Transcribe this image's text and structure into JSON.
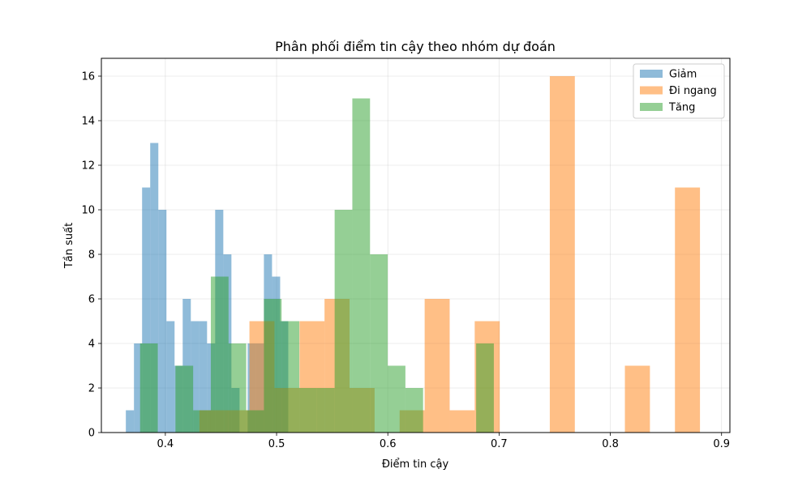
{
  "chart_data": {
    "type": "bar",
    "subtype": "overlapping-histogram",
    "title": "Phân phối điểm tin cậy theo nhóm dự đoán",
    "xlabel": "Điểm tin cậy",
    "ylabel": "Tần suất",
    "xlim": [
      0.3425,
      0.9075
    ],
    "ylim": [
      0,
      16.8
    ],
    "xticks": [
      0.4,
      0.5,
      0.6,
      0.7,
      0.8,
      0.9
    ],
    "xtick_labels": [
      "0.4",
      "0.5",
      "0.6",
      "0.7",
      "0.8",
      "0.9"
    ],
    "yticks": [
      0,
      2,
      4,
      6,
      8,
      10,
      12,
      14,
      16
    ],
    "ytick_labels": [
      "0",
      "2",
      "4",
      "6",
      "8",
      "10",
      "12",
      "14",
      "16"
    ],
    "grid": true,
    "legend_position": "top-right",
    "bar_opacity": 0.5,
    "series": [
      {
        "name": "Giảm",
        "color": "#1f77b4",
        "bins": [
          {
            "x0": 0.3645,
            "x1": 0.3718,
            "value": 1
          },
          {
            "x0": 0.3718,
            "x1": 0.3791,
            "value": 4
          },
          {
            "x0": 0.3791,
            "x1": 0.3864,
            "value": 11
          },
          {
            "x0": 0.3864,
            "x1": 0.3937,
            "value": 13
          },
          {
            "x0": 0.3937,
            "x1": 0.401,
            "value": 10
          },
          {
            "x0": 0.401,
            "x1": 0.4083,
            "value": 5
          },
          {
            "x0": 0.4083,
            "x1": 0.4156,
            "value": 3
          },
          {
            "x0": 0.4156,
            "x1": 0.4229,
            "value": 6
          },
          {
            "x0": 0.4229,
            "x1": 0.4302,
            "value": 5
          },
          {
            "x0": 0.4302,
            "x1": 0.4375,
            "value": 5
          },
          {
            "x0": 0.4375,
            "x1": 0.4448,
            "value": 4
          },
          {
            "x0": 0.4448,
            "x1": 0.4521,
            "value": 10
          },
          {
            "x0": 0.4521,
            "x1": 0.4594,
            "value": 8
          },
          {
            "x0": 0.4594,
            "x1": 0.4667,
            "value": 2
          },
          {
            "x0": 0.4667,
            "x1": 0.474,
            "value": 0
          },
          {
            "x0": 0.474,
            "x1": 0.4813,
            "value": 4
          },
          {
            "x0": 0.4813,
            "x1": 0.4886,
            "value": 4
          },
          {
            "x0": 0.4886,
            "x1": 0.4959,
            "value": 8
          },
          {
            "x0": 0.4959,
            "x1": 0.5032,
            "value": 7
          },
          {
            "x0": 0.5032,
            "x1": 0.5105,
            "value": 5
          }
        ]
      },
      {
        "name": "Đi ngang",
        "color": "#ff7f0e",
        "bins": [
          {
            "x0": 0.4306,
            "x1": 0.4531,
            "value": 1
          },
          {
            "x0": 0.4531,
            "x1": 0.4756,
            "value": 1
          },
          {
            "x0": 0.4756,
            "x1": 0.4981,
            "value": 5
          },
          {
            "x0": 0.4981,
            "x1": 0.5206,
            "value": 2
          },
          {
            "x0": 0.5206,
            "x1": 0.5431,
            "value": 5
          },
          {
            "x0": 0.5431,
            "x1": 0.5656,
            "value": 6
          },
          {
            "x0": 0.5656,
            "x1": 0.5881,
            "value": 2
          },
          {
            "x0": 0.5881,
            "x1": 0.6106,
            "value": 0
          },
          {
            "x0": 0.6106,
            "x1": 0.6331,
            "value": 1
          },
          {
            "x0": 0.6331,
            "x1": 0.6556,
            "value": 6
          },
          {
            "x0": 0.6556,
            "x1": 0.6781,
            "value": 1
          },
          {
            "x0": 0.6781,
            "x1": 0.7006,
            "value": 5
          },
          {
            "x0": 0.7006,
            "x1": 0.7231,
            "value": 0
          },
          {
            "x0": 0.7231,
            "x1": 0.7456,
            "value": 0
          },
          {
            "x0": 0.7456,
            "x1": 0.7681,
            "value": 16
          },
          {
            "x0": 0.7681,
            "x1": 0.7906,
            "value": 0
          },
          {
            "x0": 0.7906,
            "x1": 0.8131,
            "value": 0
          },
          {
            "x0": 0.8131,
            "x1": 0.8356,
            "value": 3
          },
          {
            "x0": 0.8356,
            "x1": 0.8581,
            "value": 0
          },
          {
            "x0": 0.8581,
            "x1": 0.8806,
            "value": 11
          }
        ]
      },
      {
        "name": "Tăng",
        "color": "#2ca02c",
        "bins": [
          {
            "x0": 0.3773,
            "x1": 0.3932,
            "value": 4
          },
          {
            "x0": 0.3932,
            "x1": 0.4091,
            "value": 0
          },
          {
            "x0": 0.4091,
            "x1": 0.425,
            "value": 3
          },
          {
            "x0": 0.425,
            "x1": 0.4409,
            "value": 1
          },
          {
            "x0": 0.4409,
            "x1": 0.4568,
            "value": 7
          },
          {
            "x0": 0.4568,
            "x1": 0.4727,
            "value": 4
          },
          {
            "x0": 0.4727,
            "x1": 0.4886,
            "value": 1
          },
          {
            "x0": 0.4886,
            "x1": 0.5045,
            "value": 6
          },
          {
            "x0": 0.5045,
            "x1": 0.5204,
            "value": 5
          },
          {
            "x0": 0.5204,
            "x1": 0.5363,
            "value": 2
          },
          {
            "x0": 0.5363,
            "x1": 0.5522,
            "value": 2
          },
          {
            "x0": 0.5522,
            "x1": 0.5681,
            "value": 10
          },
          {
            "x0": 0.5681,
            "x1": 0.584,
            "value": 15
          },
          {
            "x0": 0.584,
            "x1": 0.5999,
            "value": 8
          },
          {
            "x0": 0.5999,
            "x1": 0.6158,
            "value": 3
          },
          {
            "x0": 0.6158,
            "x1": 0.6317,
            "value": 2
          },
          {
            "x0": 0.6317,
            "x1": 0.6476,
            "value": 0
          },
          {
            "x0": 0.6476,
            "x1": 0.6635,
            "value": 0
          },
          {
            "x0": 0.6635,
            "x1": 0.6794,
            "value": 0
          },
          {
            "x0": 0.6794,
            "x1": 0.6953,
            "value": 4
          }
        ]
      }
    ]
  }
}
